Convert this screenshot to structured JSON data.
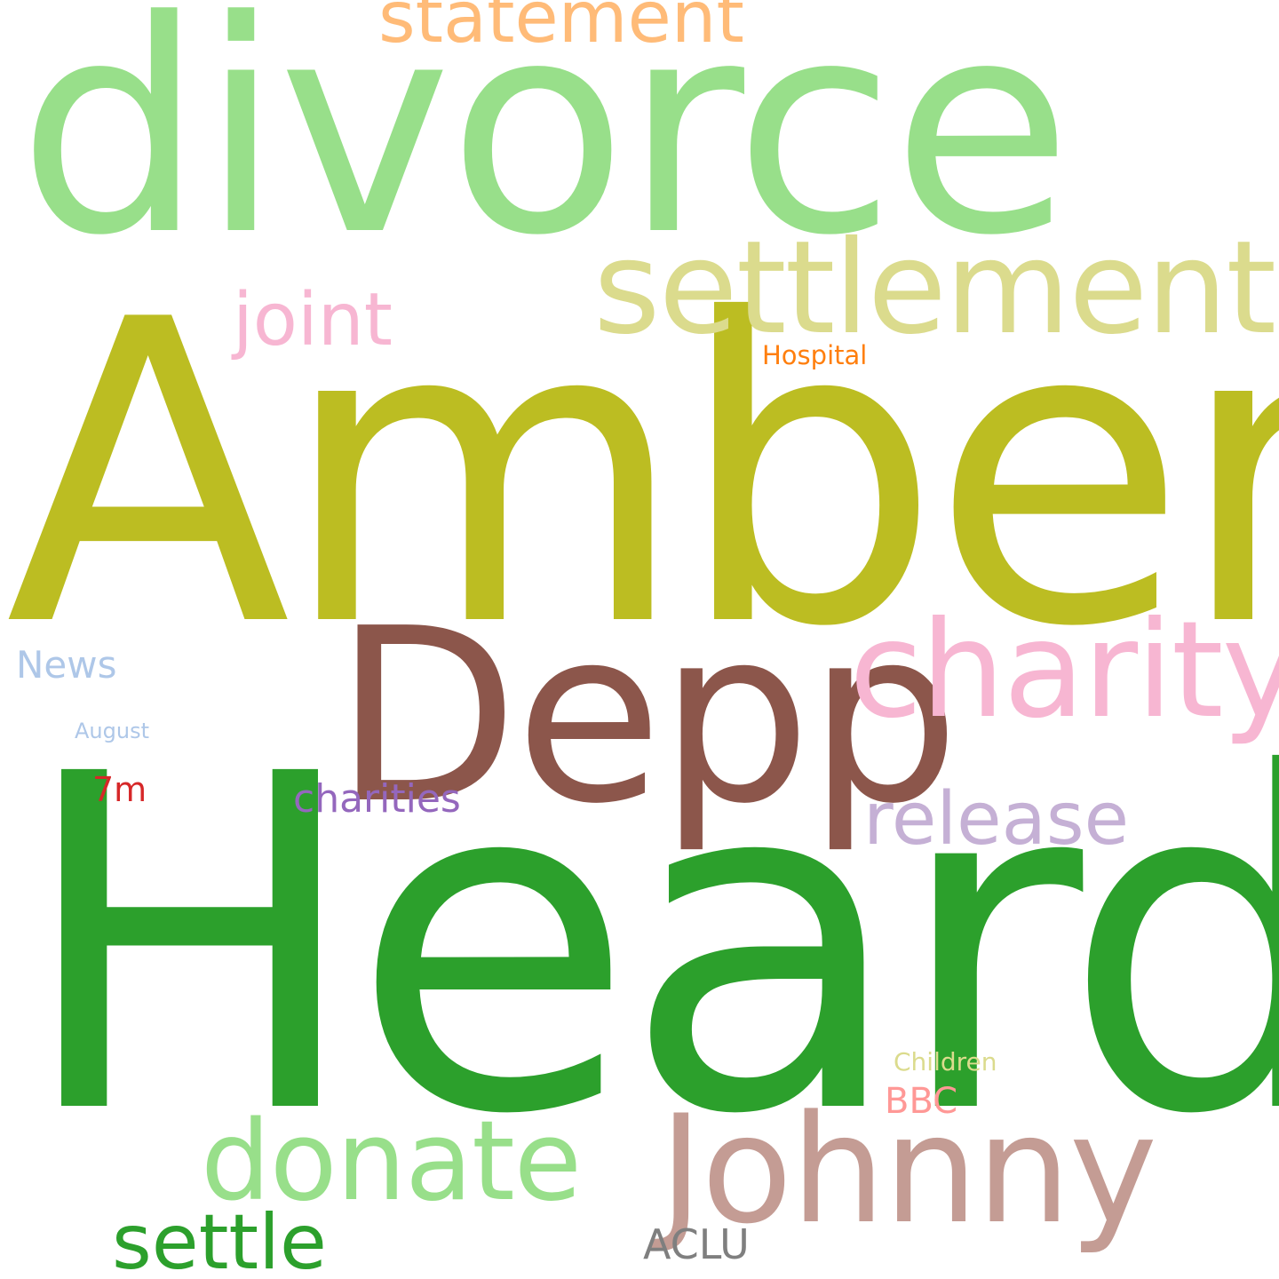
{
  "background_color": "#ffffff",
  "words": [
    {
      "key": "divorce",
      "text": "divorce",
      "color": "#98df8a"
    },
    {
      "key": "amber",
      "text": "Amber",
      "color": "#bcbd22"
    },
    {
      "key": "heard",
      "text": "Heard",
      "color": "#2ca02c"
    },
    {
      "key": "depp",
      "text": "Depp",
      "color": "#8c564b"
    },
    {
      "key": "settlement",
      "text": "settlement",
      "color": "#dbdb8d"
    },
    {
      "key": "statement",
      "text": "statement",
      "color": "#ffbb78"
    },
    {
      "key": "charity",
      "text": "charity",
      "color": "#f7b6d2"
    },
    {
      "key": "joint",
      "text": "joint",
      "color": "#f7b6d2"
    },
    {
      "key": "hospital",
      "text": "Hospital",
      "color": "#ff7f0e"
    },
    {
      "key": "news",
      "text": "News",
      "color": "#aec7e8"
    },
    {
      "key": "august",
      "text": "August",
      "color": "#aec7e8"
    },
    {
      "key": "7m",
      "text": "7m",
      "color": "#d62728"
    },
    {
      "key": "charities",
      "text": "charities",
      "color": "#9467bd"
    },
    {
      "key": "release",
      "text": "release",
      "color": "#c5b0d5"
    },
    {
      "key": "johnny",
      "text": "Johnny",
      "color": "#c49c94"
    },
    {
      "key": "donate",
      "text": "donate",
      "color": "#98df8a"
    },
    {
      "key": "settle",
      "text": "settle",
      "color": "#2ca02c"
    },
    {
      "key": "aclu",
      "text": "ACLU",
      "color": "#7f7f7f"
    },
    {
      "key": "children",
      "text": "Children",
      "color": "#dbdb8d"
    },
    {
      "key": "bbc",
      "text": "BBC",
      "color": "#ff9896"
    }
  ]
}
